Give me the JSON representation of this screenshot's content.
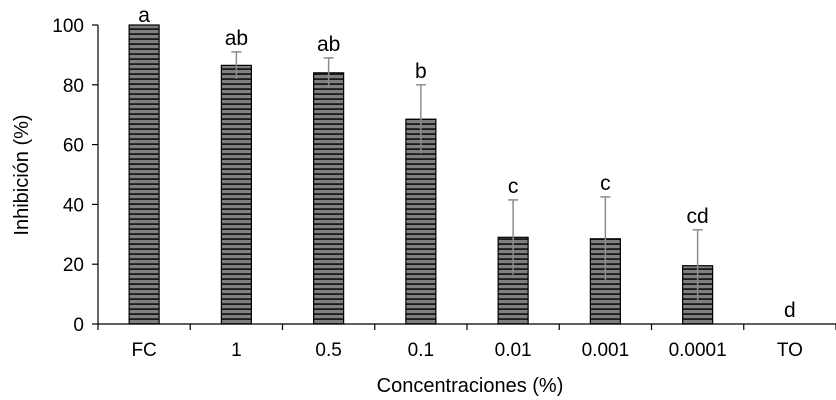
{
  "chart_data": {
    "type": "bar",
    "title": "",
    "xlabel": "Concentraciones (%)",
    "ylabel": "Inhibición (%)",
    "ylim": [
      0,
      100
    ],
    "yticks": [
      "0",
      "20",
      "40",
      "60",
      "80",
      "100"
    ],
    "grid": false,
    "legend": "none",
    "categories": [
      "FC",
      "1",
      "0.5",
      "0.1",
      "0.01",
      "0.001",
      "0.0001",
      "TO"
    ],
    "values": [
      100,
      86.5,
      84,
      68.5,
      29,
      28.5,
      19.5,
      0
    ],
    "error_upper": [
      0,
      4.5,
      5,
      11.5,
      12.5,
      14,
      12,
      0
    ],
    "error_lower": [
      0,
      4.5,
      5,
      11.5,
      12.5,
      14,
      12,
      0
    ],
    "significance_labels": [
      "a",
      "ab",
      "ab",
      "b",
      "c",
      "c",
      "cd",
      "d"
    ],
    "bar_fill": "#808080",
    "bar_stripe": "#000000",
    "error_bar_color": "#8c8c8c",
    "axis_color": "#000000"
  }
}
